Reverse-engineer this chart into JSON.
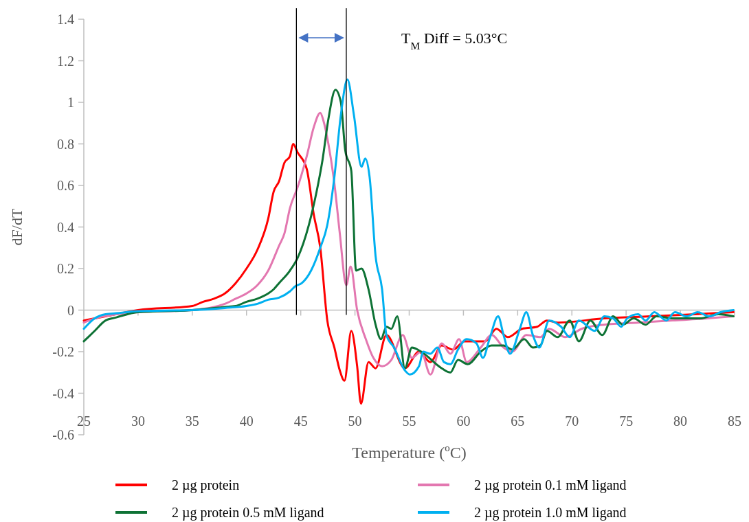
{
  "chart_data": {
    "type": "line",
    "xlabel": "Temperature (ºC)",
    "ylabel": "dF/dT",
    "xlim": [
      25,
      85
    ],
    "ylim": [
      -0.6,
      1.4
    ],
    "xticks": [
      25,
      30,
      35,
      40,
      45,
      50,
      55,
      60,
      65,
      70,
      75,
      80,
      85
    ],
    "yticks": [
      -0.6,
      -0.4,
      -0.2,
      0,
      0.2,
      0.4,
      0.6,
      0.8,
      1,
      1.2,
      1.4
    ],
    "legend": "bottom",
    "line_style": "solid",
    "marker": "none",
    "ref_lines": [
      {
        "axis": "x",
        "value": 44.6,
        "color": "#000000"
      },
      {
        "axis": "x",
        "value": 49.2,
        "color": "#000000"
      }
    ],
    "annotations": [
      "T$_{M}$ Diff = 5.03°C"
    ],
    "series": [
      {
        "name": "2 µg protein",
        "color": "#ff0000",
        "x": [
          25,
          27,
          30,
          35,
          36,
          37,
          38,
          39,
          40,
          41,
          42,
          42.5,
          43,
          43.5,
          44,
          44.3,
          44.7,
          45.55,
          46.2,
          46.8,
          47.45,
          48.1,
          48.6,
          49.03,
          49.66,
          50.2,
          50.55,
          51.25,
          51.9,
          52.9,
          54.6,
          55.9,
          56.95,
          58,
          59.05,
          60.1,
          61.1,
          62,
          63.05,
          64.1,
          65.4,
          66.8,
          67.7,
          68.7,
          73,
          77.2,
          81.4,
          84.9
        ],
        "values": [
          -0.05,
          -0.03,
          0,
          0.02,
          0.04,
          0.055,
          0.08,
          0.13,
          0.2,
          0.29,
          0.44,
          0.57,
          0.62,
          0.71,
          0.74,
          0.8,
          0.76,
          0.68,
          0.46,
          0.3,
          -0.05,
          -0.18,
          -0.29,
          -0.34,
          -0.1,
          -0.27,
          -0.45,
          -0.25,
          -0.28,
          -0.12,
          -0.28,
          -0.2,
          -0.25,
          -0.17,
          -0.19,
          -0.15,
          -0.15,
          -0.15,
          -0.09,
          -0.13,
          -0.09,
          -0.08,
          -0.05,
          -0.06,
          -0.04,
          -0.03,
          -0.02,
          -0.01
        ]
      },
      {
        "name": "2 µg protein 0.1 mM ligand",
        "color": "#e377b0",
        "x": [
          25,
          26,
          28,
          30,
          35,
          38,
          39,
          40,
          41,
          42,
          43,
          43.5,
          44,
          44.7,
          45.55,
          46.2,
          46.8,
          47.1,
          47.55,
          48.1,
          48.6,
          49.2,
          49.6,
          50.2,
          51,
          51.7,
          52.5,
          53.35,
          54.4,
          55.25,
          56.1,
          56.95,
          58,
          58.8,
          59.6,
          60.3,
          61.6,
          62.6,
          63.7,
          64.5,
          65.8,
          67.1,
          67.9,
          69.4,
          70.9,
          73,
          76.1,
          79.3,
          82.5,
          84.9
        ],
        "values": [
          -0.06,
          -0.04,
          -0.02,
          -0.01,
          0,
          0.03,
          0.055,
          0.08,
          0.12,
          0.19,
          0.31,
          0.37,
          0.49,
          0.59,
          0.74,
          0.88,
          0.95,
          0.91,
          0.8,
          0.61,
          0.37,
          0.12,
          0.21,
          0,
          -0.14,
          -0.23,
          -0.27,
          -0.24,
          -0.12,
          -0.23,
          -0.2,
          -0.31,
          -0.16,
          -0.21,
          -0.14,
          -0.25,
          -0.18,
          -0.12,
          -0.18,
          -0.2,
          -0.12,
          -0.13,
          -0.09,
          -0.13,
          -0.09,
          -0.07,
          -0.06,
          -0.05,
          -0.04,
          -0.03
        ]
      },
      {
        "name": "2 µg protein 0.5 mM ligand",
        "color": "#0e7235",
        "x": [
          25,
          26,
          27,
          28,
          30,
          35,
          38,
          39,
          40,
          41,
          42,
          42.5,
          43,
          44,
          44.7,
          45.75,
          46.5,
          47,
          47.55,
          48.2,
          48.7,
          49.1,
          49.66,
          50.1,
          50.6,
          51.25,
          51.9,
          52.4,
          52.9,
          53.35,
          53.9,
          54.6,
          55.25,
          56.1,
          58,
          58.8,
          59.5,
          60.4,
          61.6,
          62.6,
          63.7,
          64.5,
          65.6,
          66.4,
          67.1,
          67.7,
          68.7,
          69.8,
          70.65,
          71.7,
          72.8,
          73.8,
          74.7,
          75.7,
          76.8,
          77.8,
          79.3,
          81.8,
          83.5,
          84.9
        ],
        "values": [
          -0.15,
          -0.1,
          -0.05,
          -0.035,
          -0.01,
          0,
          0.015,
          0.02,
          0.04,
          0.055,
          0.08,
          0.1,
          0.13,
          0.19,
          0.25,
          0.41,
          0.58,
          0.72,
          0.92,
          1.06,
          1,
          0.77,
          0.67,
          0.19,
          0.2,
          0.1,
          -0.07,
          -0.14,
          -0.08,
          -0.09,
          -0.03,
          -0.28,
          -0.18,
          -0.2,
          -0.28,
          -0.3,
          -0.24,
          -0.26,
          -0.2,
          -0.17,
          -0.17,
          -0.19,
          -0.14,
          -0.18,
          -0.17,
          -0.1,
          -0.13,
          -0.05,
          -0.15,
          -0.05,
          -0.12,
          -0.03,
          -0.07,
          -0.04,
          -0.07,
          -0.03,
          -0.04,
          -0.04,
          -0.02,
          -0.03
        ]
      },
      {
        "name": "2 µg protein 1.0 mM ligand",
        "color": "#00b0f0",
        "x": [
          25,
          26,
          27,
          28,
          30,
          35,
          38,
          40,
          41,
          42,
          43,
          44,
          44.5,
          45.1,
          45.95,
          46.8,
          47.45,
          48.1,
          48.7,
          49.3,
          49.9,
          50.6,
          50.95,
          51.35,
          51.9,
          52.5,
          52.9,
          53.6,
          54.6,
          55.05,
          55.9,
          56.3,
          56.95,
          57.6,
          58.2,
          58.8,
          59.5,
          60.3,
          61.2,
          61.8,
          62.4,
          63.2,
          63.7,
          64.3,
          65.2,
          65.8,
          66.4,
          67,
          67.9,
          69,
          69.8,
          70.65,
          72.1,
          73,
          73.8,
          74.55,
          75.1,
          76.1,
          76.8,
          77.6,
          78.7,
          79.5,
          80.6,
          81.6,
          82.7,
          83.7,
          84.9
        ],
        "values": [
          -0.09,
          -0.04,
          -0.02,
          -0.015,
          -0.005,
          0,
          0.01,
          0.02,
          0.03,
          0.05,
          0.06,
          0.09,
          0.115,
          0.13,
          0.19,
          0.3,
          0.41,
          0.64,
          0.94,
          1.11,
          0.94,
          0.69,
          0.73,
          0.64,
          0.26,
          0.1,
          -0.12,
          -0.18,
          -0.29,
          -0.31,
          -0.27,
          -0.2,
          -0.21,
          -0.18,
          -0.25,
          -0.26,
          -0.19,
          -0.14,
          -0.16,
          -0.23,
          -0.14,
          -0.03,
          -0.12,
          -0.21,
          -0.09,
          -0.01,
          -0.12,
          -0.18,
          -0.05,
          -0.08,
          -0.13,
          -0.05,
          -0.1,
          -0.03,
          -0.04,
          -0.08,
          -0.04,
          -0.02,
          -0.05,
          -0.01,
          -0.05,
          -0.01,
          -0.03,
          -0.01,
          -0.03,
          -0.01,
          0
        ]
      }
    ]
  }
}
